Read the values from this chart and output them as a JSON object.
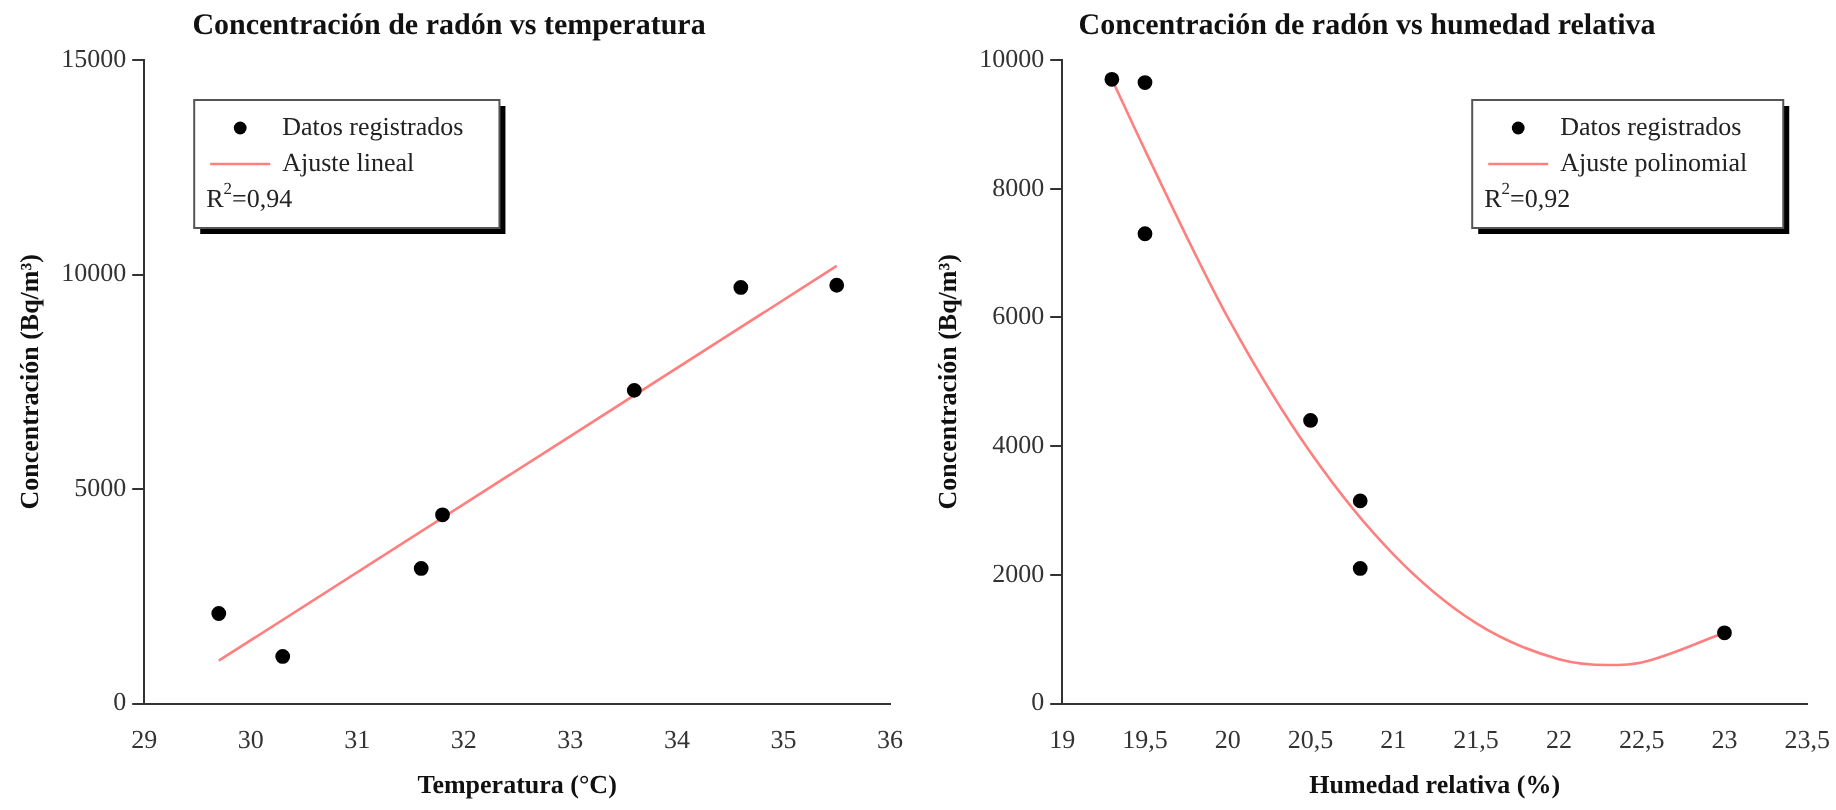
{
  "chart_data": [
    {
      "type": "scatter",
      "title": "Concentración de radón vs temperatura",
      "xlabel": "Temperatura (°C)",
      "ylabel": "Concentración (Bq/m³)",
      "xlim": [
        29,
        36
      ],
      "xticks": [
        29,
        30,
        31,
        32,
        33,
        34,
        35,
        36
      ],
      "ylim": [
        0,
        15000
      ],
      "yticks": [
        0,
        5000,
        10000,
        15000
      ],
      "legend": "top left",
      "annotations": [
        "R$^{2}$=0,94"
      ],
      "series": [
        {
          "name": "Datos registrados",
          "color": "#000000",
          "marker": "circle",
          "x": [
            29.7,
            30.3,
            31.6,
            31.8,
            33.6,
            34.6,
            35.5
          ],
          "values": [
            2100,
            1100,
            3150,
            4400,
            7300,
            9700,
            9750
          ]
        },
        {
          "name": "Ajuste lineal",
          "type": "line",
          "marker": "none",
          "color": "#ff7f7f",
          "x": [
            29.7,
            35.5
          ],
          "values": [
            1000,
            10200
          ]
        }
      ]
    },
    {
      "type": "scatter",
      "title": "Concentración de radón vs humedad relativa",
      "xlabel": "Humedad relativa (%)",
      "ylabel": "Concentración (Bq/m³)",
      "xlim": [
        19,
        23.5
      ],
      "xticks": [
        19,
        {
          "value": 19.5,
          "label": "19,5"
        },
        20,
        {
          "value": 20.5,
          "label": "20,5"
        },
        21,
        {
          "value": 21.5,
          "label": "21,5"
        },
        22,
        {
          "value": 22.5,
          "label": "22,5"
        },
        23,
        {
          "value": 23.5,
          "label": "23,5"
        }
      ],
      "ylim": [
        0,
        10000
      ],
      "yticks": [
        0,
        2000,
        4000,
        6000,
        8000,
        10000
      ],
      "legend": "top right",
      "annotations": [
        "R$^{2}$=0,92"
      ],
      "series": [
        {
          "name": "Datos registrados",
          "color": "#000000",
          "marker": "circle",
          "x": [
            19.3,
            19.5,
            19.5,
            20.5,
            20.8,
            20.8,
            23
          ],
          "values": [
            9700,
            9650,
            7300,
            4400,
            3150,
            2100,
            1100
          ]
        },
        {
          "name": "Ajuste polinomial",
          "type": "line",
          "marker": "none",
          "color": "#ff7f7f",
          "x": [
            19.3,
            19.5,
            20,
            20.5,
            21,
            21.5,
            22,
            22.3,
            22.5,
            23
          ],
          "values": [
            9700,
            8600,
            6000,
            3900,
            2320,
            1250,
            690,
            600,
            640,
            1100
          ]
        }
      ]
    }
  ]
}
